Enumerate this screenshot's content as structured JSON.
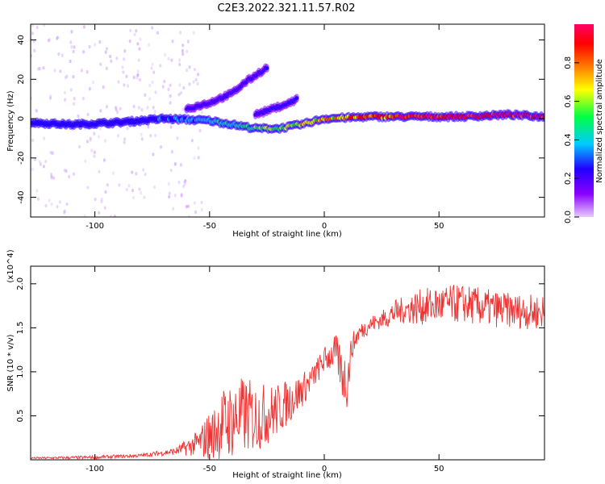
{
  "title": "C2E3.2022.321.11.57.R02",
  "chart_data": [
    {
      "type": "heatmap",
      "xlabel": "Height of straight line (km)",
      "ylabel": "Frequency (Hz)",
      "xlim": [
        -128,
        96
      ],
      "ylim": [
        -50,
        48
      ],
      "x_ticks": [
        -100,
        -50,
        0,
        50
      ],
      "y_ticks": [
        -40,
        -20,
        0,
        20,
        40
      ],
      "colorbar": {
        "label": "Normalized spectral amplitude",
        "range": [
          0.0,
          1.0
        ],
        "ticks": [
          "0.0",
          "0.2",
          "0.4",
          "0.6",
          "0.8"
        ],
        "colormap": [
          "#d9b3ff",
          "#8a00ff",
          "#2200ff",
          "#00ccff",
          "#00ff44",
          "#ffff00",
          "#ff6600",
          "#ff0000",
          "#ff0066"
        ]
      },
      "ridges": [
        {
          "name": "main",
          "x": [
            -128,
            -110,
            -90,
            -70,
            -50,
            -40,
            -30,
            -20,
            -10,
            0,
            20,
            40,
            60,
            80,
            96
          ],
          "y": [
            -2,
            -3,
            -2,
            0,
            -1,
            -3,
            -5,
            -5,
            -3,
            0,
            1,
            1,
            1,
            2,
            1
          ]
        },
        {
          "name": "upper",
          "x": [
            -60,
            -50,
            -40,
            -35,
            -30,
            -25
          ],
          "y": [
            5,
            8,
            13,
            18,
            22,
            26
          ]
        },
        {
          "name": "faint",
          "x": [
            -30,
            -25,
            -20,
            -15,
            -12
          ],
          "y": [
            2,
            4,
            6,
            8,
            10
          ]
        }
      ]
    },
    {
      "type": "line",
      "xlabel": "Height of straight line (km)",
      "ylabel": "SNR (10 * v/v)",
      "y_multiplier": "(x10^4)",
      "xlim": [
        -128,
        96
      ],
      "ylim": [
        0,
        2.2
      ],
      "x_ticks": [
        -100,
        -50,
        0,
        50
      ],
      "y_ticks": [
        "0.5",
        "1.0",
        "1.5",
        "2.0"
      ],
      "color": "#ee3333",
      "series": [
        {
          "x": [
            -128,
            -100,
            -80,
            -65,
            -55,
            -50,
            -45,
            -40,
            -35,
            -30,
            -25,
            -20,
            -15,
            -10,
            -5,
            0,
            5,
            8,
            10,
            12,
            15,
            20,
            25,
            30,
            35,
            40,
            50,
            60,
            70,
            80,
            90,
            96
          ],
          "y": [
            0.02,
            0.03,
            0.05,
            0.1,
            0.2,
            0.3,
            0.45,
            0.5,
            0.55,
            0.52,
            0.55,
            0.6,
            0.7,
            0.8,
            0.95,
            1.15,
            1.25,
            1.0,
            0.9,
            1.3,
            1.45,
            1.55,
            1.6,
            1.68,
            1.72,
            1.75,
            1.78,
            1.8,
            1.75,
            1.72,
            1.7,
            1.7
          ],
          "noise": [
            0.01,
            0.02,
            0.02,
            0.04,
            0.15,
            0.3,
            0.4,
            0.45,
            0.45,
            0.4,
            0.35,
            0.3,
            0.25,
            0.2,
            0.15,
            0.15,
            0.2,
            0.3,
            0.3,
            0.15,
            0.1,
            0.1,
            0.1,
            0.15,
            0.15,
            0.2,
            0.22,
            0.22,
            0.22,
            0.2,
            0.2,
            0.2
          ]
        }
      ]
    }
  ]
}
